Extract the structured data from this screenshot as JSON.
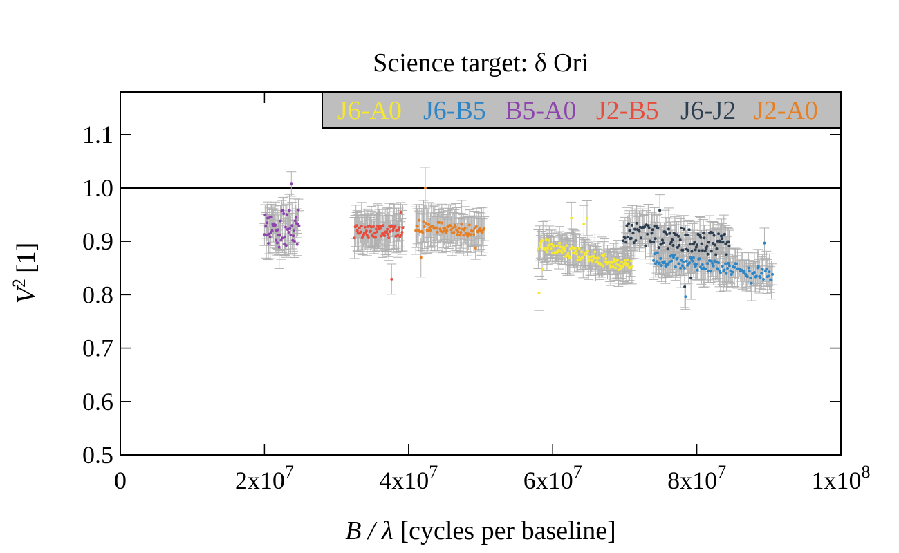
{
  "chart_data": {
    "type": "scatter",
    "title": "Science target: δ Ori",
    "xlabel": {
      "var": "B / λ",
      "rest": "[cycles per baseline]"
    },
    "ylabel": {
      "var": "V",
      "sup": "2",
      "rest": "[1]"
    },
    "xlim": [
      0,
      100000000
    ],
    "ylim": [
      0.5,
      1.18
    ],
    "x_ticks": [
      {
        "value": 0,
        "label": "0",
        "exp": ""
      },
      {
        "value": 20000000,
        "label": "2x10",
        "exp": "7"
      },
      {
        "value": 40000000,
        "label": "4x10",
        "exp": "7"
      },
      {
        "value": 60000000,
        "label": "6x10",
        "exp": "7"
      },
      {
        "value": 80000000,
        "label": "8x10",
        "exp": "7"
      },
      {
        "value": 100000000,
        "label": "1x10",
        "exp": "8"
      }
    ],
    "y_ticks": [
      {
        "value": 0.5,
        "label": "0.5"
      },
      {
        "value": 0.6,
        "label": "0.6"
      },
      {
        "value": 0.7,
        "label": "0.7"
      },
      {
        "value": 0.8,
        "label": "0.8"
      },
      {
        "value": 0.9,
        "label": "0.9"
      },
      {
        "value": 1.0,
        "label": "1.0"
      },
      {
        "value": 1.1,
        "label": "1.1"
      }
    ],
    "reference_line": 1.0,
    "grid": false,
    "legend_position": "top-right",
    "legend_background": "#bebebe",
    "errorbar_color": "#b0b0b0",
    "series": [
      {
        "name": "J6-A0",
        "color": "#f5e82f",
        "x_range": [
          58000000,
          71000000
        ],
        "y_start": 0.895,
        "y_end": 0.852,
        "amp": 0.012,
        "err": 0.025,
        "n": 120
      },
      {
        "name": "J6-B5",
        "color": "#2e86c6",
        "x_range": [
          74000000,
          90500000
        ],
        "y_start": 0.868,
        "y_end": 0.838,
        "amp": 0.012,
        "err": 0.025,
        "n": 120
      },
      {
        "name": "B5-A0",
        "color": "#8e44ad",
        "x_range": [
          20000000,
          24800000
        ],
        "y_start": 0.922,
        "y_end": 0.925,
        "amp": 0.035,
        "err": 0.03,
        "n": 55
      },
      {
        "name": "J2-B5",
        "color": "#e74c3c",
        "x_range": [
          32500000,
          39200000
        ],
        "y_start": 0.918,
        "y_end": 0.918,
        "amp": 0.012,
        "err": 0.03,
        "n": 70
      },
      {
        "name": "J6-J2",
        "color": "#2c3e50",
        "x_range": [
          69800000,
          84500000
        ],
        "y_start": 0.915,
        "y_end": 0.893,
        "amp": 0.022,
        "err": 0.028,
        "n": 120
      },
      {
        "name": "J2-A0",
        "color": "#e67e22",
        "x_range": [
          41000000,
          50500000
        ],
        "y_start": 0.928,
        "y_end": 0.918,
        "amp": 0.012,
        "err": 0.03,
        "n": 80
      }
    ]
  }
}
